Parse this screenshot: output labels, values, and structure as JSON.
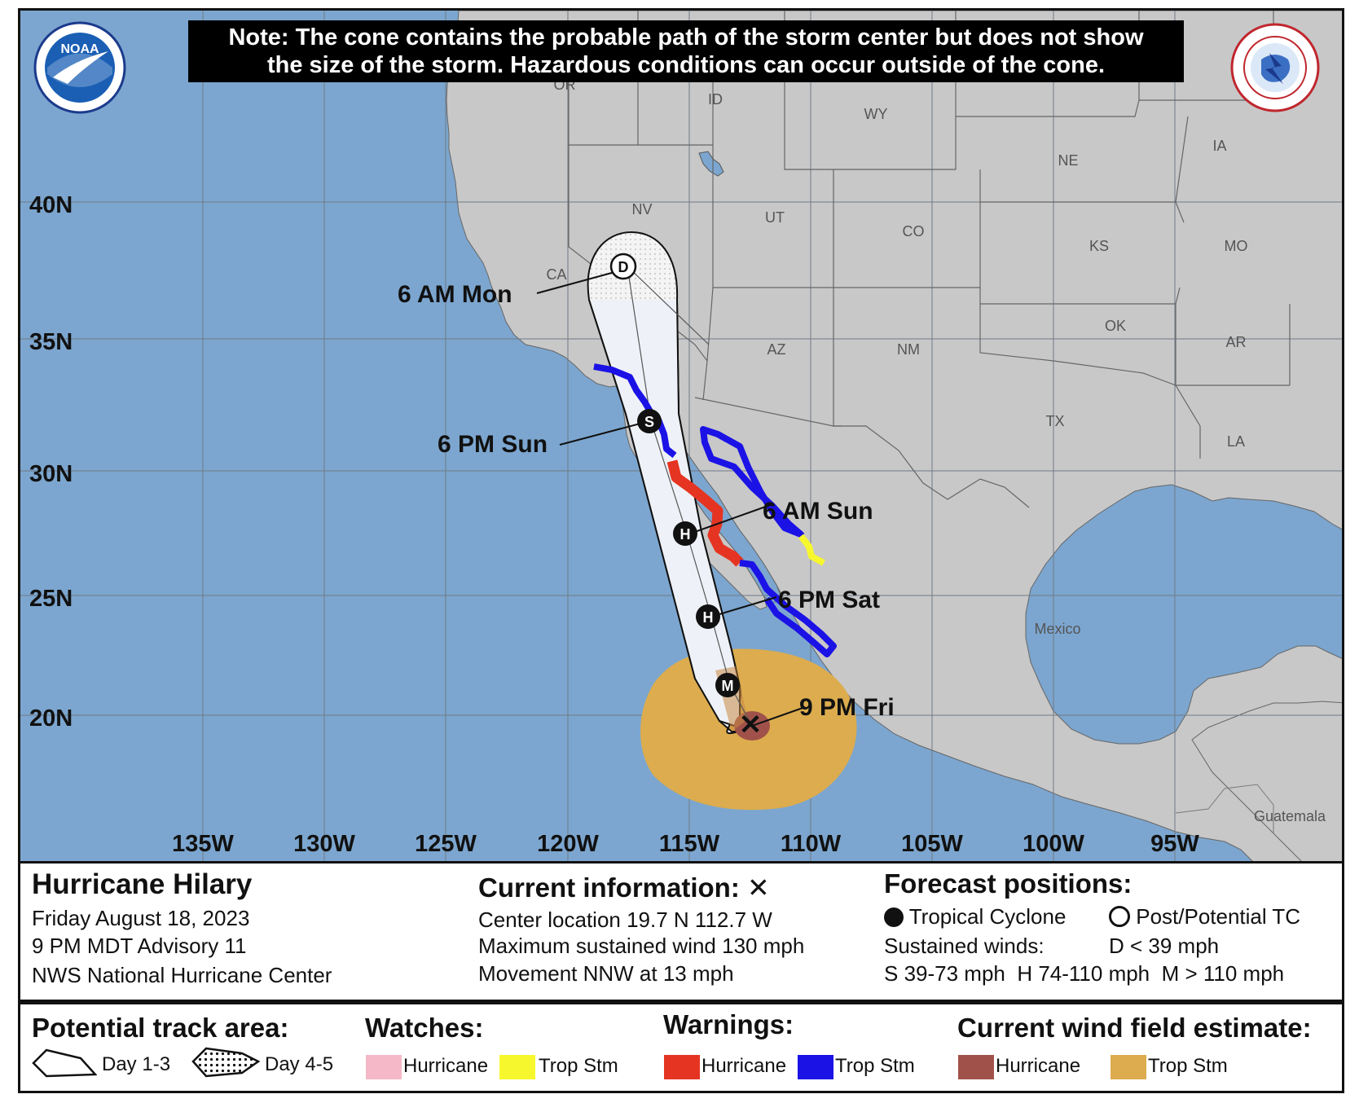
{
  "note": {
    "line1": "Note: The cone contains the probable path of the storm center but does not show",
    "line2": "the size of the storm. Hazardous conditions can occur outside of the cone."
  },
  "logos": {
    "left": "NOAA",
    "right": "NATIONAL WEATHER SERVICE"
  },
  "map": {
    "lat_labels": [
      "40N",
      "35N",
      "30N",
      "25N",
      "20N"
    ],
    "lon_labels": [
      "135W",
      "130W",
      "125W",
      "120W",
      "115W",
      "110W",
      "105W",
      "100W",
      "95W"
    ],
    "states": [
      "OR",
      "ID",
      "WY",
      "NE",
      "IA",
      "NV",
      "UT",
      "CO",
      "KS",
      "MO",
      "CA",
      "AZ",
      "NM",
      "OK",
      "AR",
      "TX",
      "LA"
    ],
    "countries": [
      "Mexico",
      "Guatemala"
    ],
    "colors": {
      "ocean": "#7ca6cf",
      "land": "#c8c8c8",
      "hurricane_warning": "#e53421",
      "trop_storm_warning": "#1b12e6",
      "trop_storm_watch": "#f7f72e",
      "hurricane_watch": "#f5b8c8",
      "hurricane_wind": "#a0524a",
      "trop_storm_wind": "#dcac4e",
      "cone_day13": "#eef2f8",
      "cone_day45": "#f4f4f4"
    }
  },
  "forecast_points": [
    {
      "label": "9 PM Fri",
      "marker": "X",
      "lat": 19.7,
      "lon": -112.7
    },
    {
      "label": "",
      "marker": "M",
      "lat": 21.0,
      "lon": -113.5
    },
    {
      "label": "6 PM Sat",
      "marker": "H",
      "lat": 24.2,
      "lon": -114.5
    },
    {
      "label": "6 AM Sun",
      "marker": "H",
      "lat": 27.6,
      "lon": -115.3
    },
    {
      "label": "6 PM Sun",
      "marker": "S",
      "lat": 32.6,
      "lon": -116.7
    },
    {
      "label": "6 AM Mon",
      "marker": "D",
      "lat": 38.2,
      "lon": -117.7
    }
  ],
  "info": {
    "storm_name": "Hurricane Hilary",
    "date": "Friday August 18, 2023",
    "advisory": "9 PM MDT Advisory 11",
    "center": "NWS National Hurricane Center",
    "current_heading": "Current information: ✕",
    "center_location": "Center location 19.7 N 112.7 W",
    "max_wind": "Maximum sustained wind 130 mph",
    "movement": "Movement NNW at 13 mph",
    "forecast_heading": "Forecast positions:",
    "tropical_cyclone": "Tropical Cyclone",
    "post_potential": "Post/Potential TC",
    "sustained_winds": "Sustained winds:",
    "d_winds": "D < 39 mph",
    "winds_line": "S 39-73 mph  H 74-110 mph  M > 110 mph"
  },
  "legend": {
    "track_heading": "Potential track area:",
    "day13": "Day 1-3",
    "day45": "Day 4-5",
    "watches_heading": "Watches:",
    "watch_hurricane": "Hurricane",
    "watch_tropstm": "Trop Stm",
    "warnings_heading": "Warnings:",
    "warn_hurricane": "Hurricane",
    "warn_tropstm": "Trop Stm",
    "wind_heading": "Current wind field estimate:",
    "wind_hurricane": "Hurricane",
    "wind_tropstm": "Trop Stm"
  }
}
